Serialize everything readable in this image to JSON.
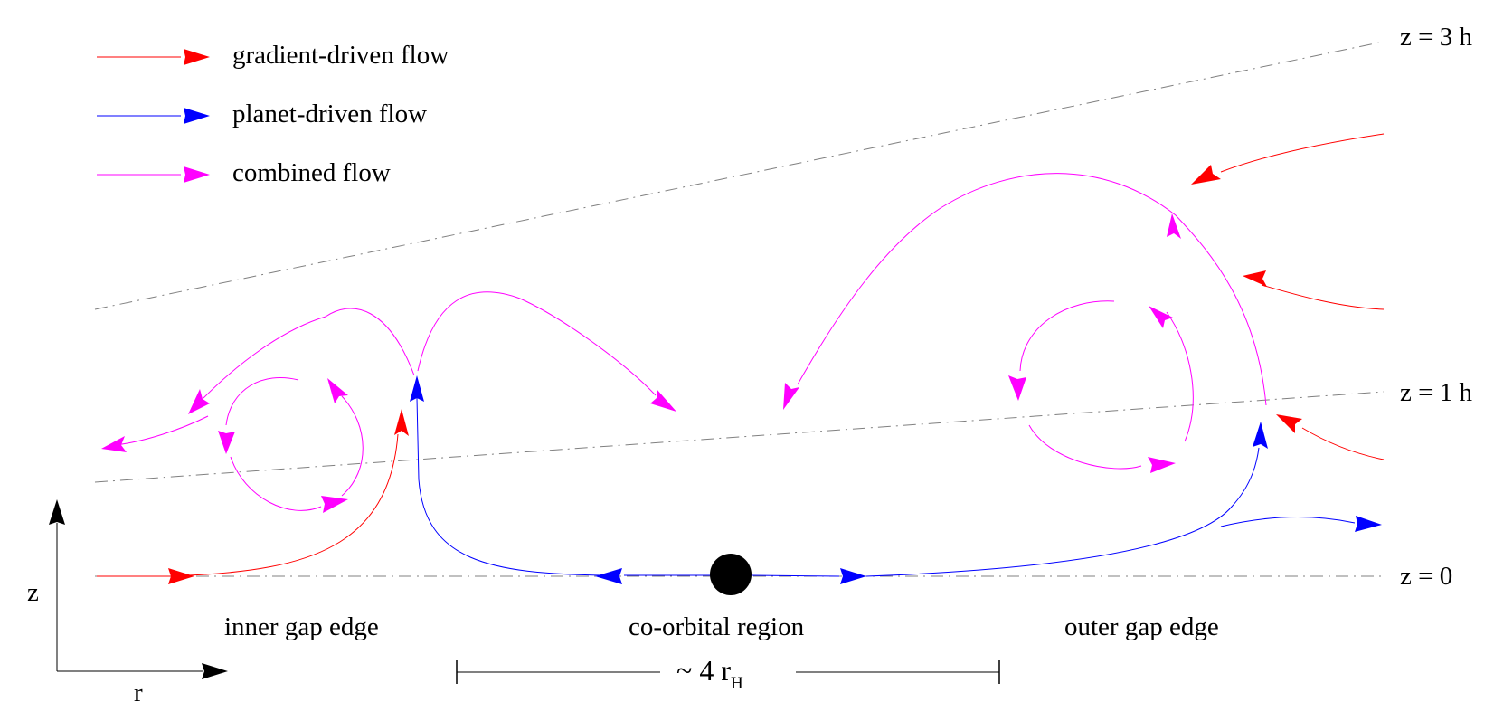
{
  "legend": {
    "gradient": {
      "label": "gradient-driven flow",
      "color": "#ff0000"
    },
    "planet": {
      "label": "planet-driven flow",
      "color": "#0000ff"
    },
    "combined": {
      "label": "combined flow",
      "color": "#ff00ff"
    }
  },
  "height_labels": {
    "z3": "z = 3 h",
    "z1": "z = 1 h",
    "z0": "z = 0"
  },
  "axes": {
    "z": "z",
    "r": "r"
  },
  "regions": {
    "inner": "inner gap edge",
    "coorbital": "co-orbital region",
    "outer": "outer gap edge"
  },
  "scale": {
    "prefix": "~ 4 r",
    "subscript": "H"
  },
  "colors": {
    "gradient": "#ff0000",
    "planet": "#0000ff",
    "combined": "#ff00ff",
    "guide": "#808080",
    "planet_body": "#000000"
  }
}
